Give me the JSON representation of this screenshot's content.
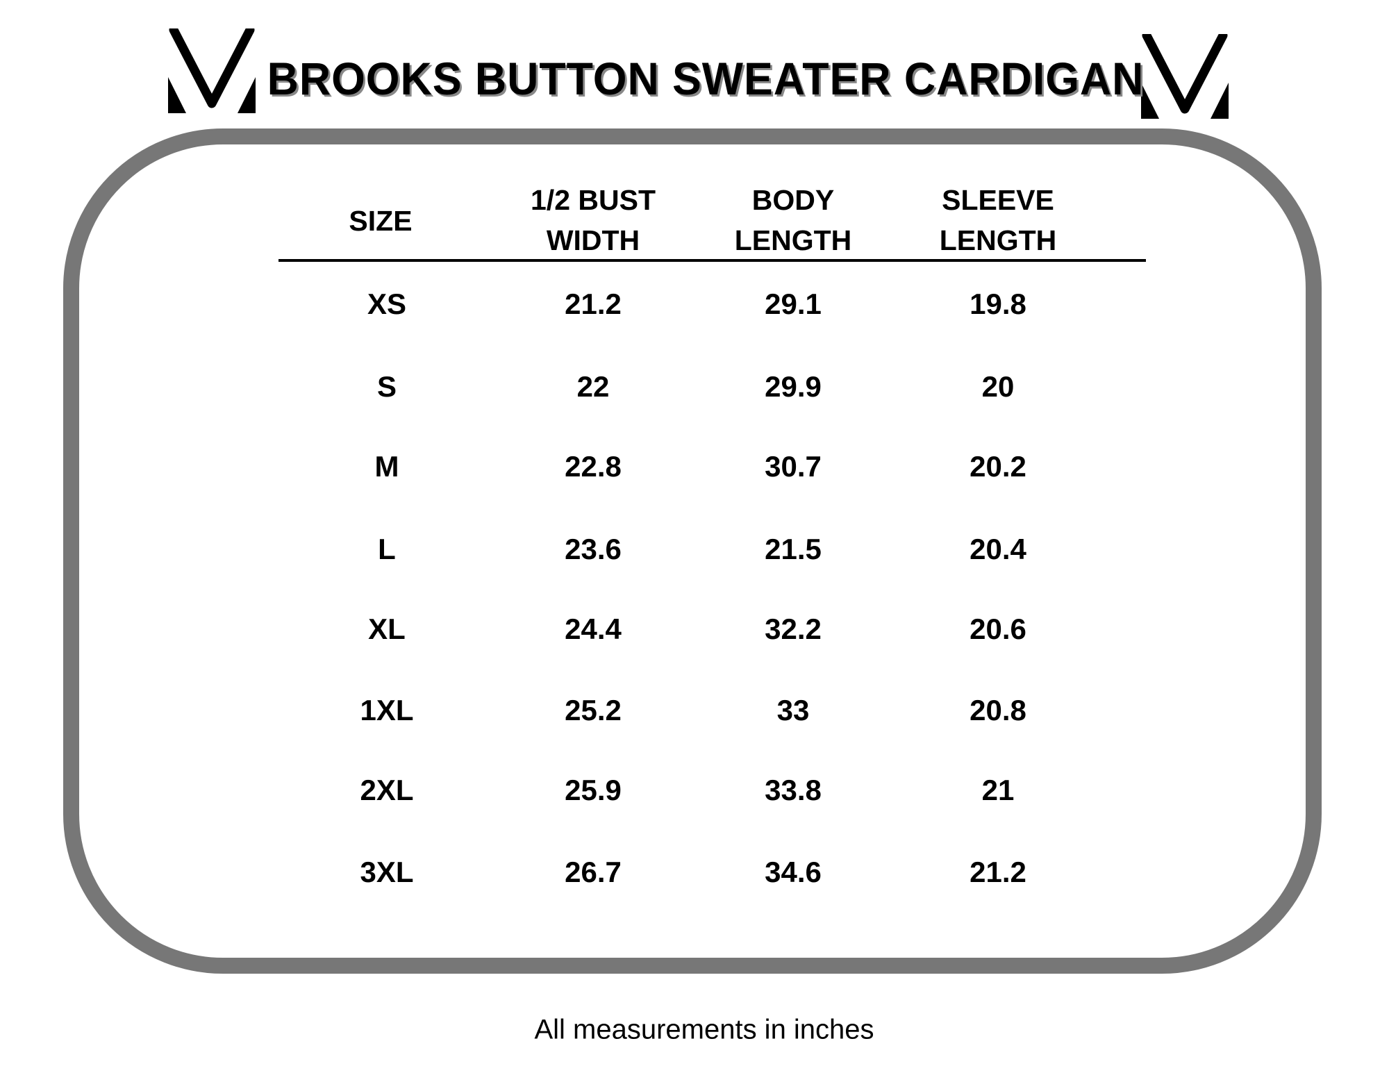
{
  "title": "BROOKS BUTTON SWEATER CARDIGAN",
  "logo": {
    "icon": "v-monogram-icon",
    "color": "#000000"
  },
  "frame_color": "#777777",
  "table": {
    "headers": [
      {
        "line1": "",
        "line2": "SIZE"
      },
      {
        "line1": "1/2 BUST",
        "line2": "WIDTH"
      },
      {
        "line1": "BODY",
        "line2": "LENGTH"
      },
      {
        "line1": "SLEEVE",
        "line2": "LENGTH"
      }
    ],
    "rows": [
      [
        "XS",
        "21.2",
        "29.1",
        "19.8"
      ],
      [
        "S",
        "22",
        "29.9",
        "20"
      ],
      [
        "M",
        "22.8",
        "30.7",
        "20.2"
      ],
      [
        "L",
        "23.6",
        "21.5",
        "20.4"
      ],
      [
        "XL",
        "24.4",
        "32.2",
        "20.6"
      ],
      [
        "1XL",
        "25.2",
        "33",
        "20.8"
      ],
      [
        "2XL",
        "25.9",
        "33.8",
        "21"
      ],
      [
        "3XL",
        "26.7",
        "34.6",
        "21.2"
      ]
    ]
  },
  "footer": "All measurements in inches"
}
